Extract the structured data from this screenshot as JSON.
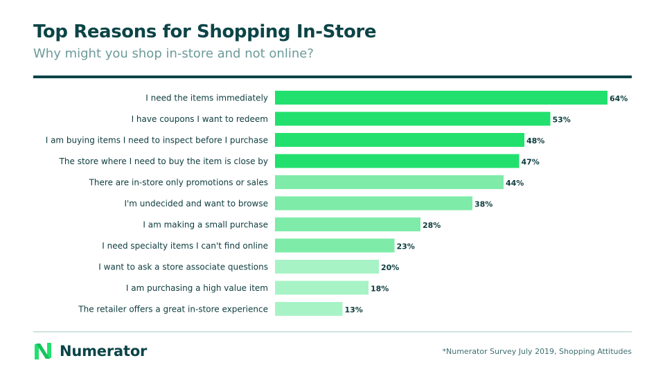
{
  "header": {
    "title": "Top Reasons for Shopping In-Store",
    "subtitle": "Why might you shop in-store and not online?"
  },
  "colors": {
    "dark_teal": "#0c4447",
    "bar_tier_1": "#22e06d",
    "bar_tier_2": "#7eeba9",
    "bar_tier_3": "#a8f3c6"
  },
  "chart_data": {
    "type": "bar",
    "orientation": "horizontal",
    "categories": [
      "I need the items immediately",
      "I have coupons I want to redeem",
      "I am buying items I need to inspect before I purchase",
      "The store where I need to buy the item is close by",
      "There are in-store only promotions or sales",
      "I'm undecided and want to browse",
      "I am making a small purchase",
      "I need specialty items I can't find online",
      "I want to ask a store associate questions",
      "I am purchasing a high value item",
      "The retailer offers a great in-store experience"
    ],
    "values": [
      64,
      53,
      48,
      47,
      44,
      38,
      28,
      23,
      20,
      18,
      13
    ],
    "data_labels": [
      "64%",
      "53%",
      "48%",
      "47%",
      "44%",
      "38%",
      "28%",
      "23%",
      "20%",
      "18%",
      "13%"
    ],
    "color_tiers": [
      1,
      1,
      1,
      1,
      2,
      2,
      2,
      2,
      3,
      3,
      3
    ],
    "unit": "%",
    "xlim": [
      0,
      70
    ],
    "grid": false,
    "legend": "none"
  },
  "footer": {
    "brand_name": "Numerator",
    "logo_icon": "numerator-n-icon",
    "footnote": "*Numerator Survey July 2019, Shopping Attitudes"
  }
}
